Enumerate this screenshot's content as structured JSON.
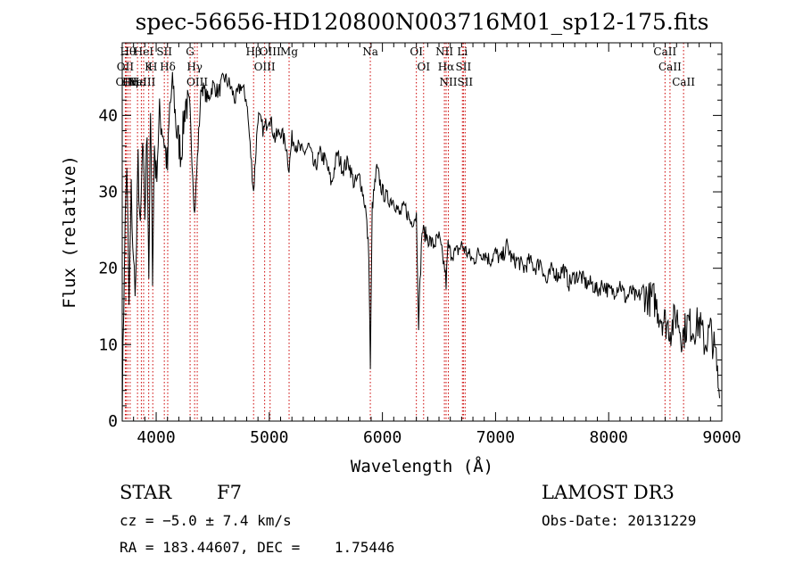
{
  "chart_data": {
    "type": "line",
    "title": "spec-56656-HD120800N003716M01_sp12-175.fits",
    "xlabel": "Wavelength (Å)",
    "ylabel": "Flux (relative)",
    "xlim": [
      3700,
      9000
    ],
    "ylim": [
      0,
      49.5
    ],
    "xticks": [
      4000,
      5000,
      6000,
      7000,
      8000,
      9000
    ],
    "yticks": [
      0,
      10,
      20,
      30,
      40
    ],
    "xtick_labels": [
      "4000",
      "5000",
      "6000",
      "7000",
      "8000",
      "9000"
    ],
    "ytick_labels": [
      "0",
      "10",
      "20",
      "30",
      "40"
    ],
    "line_color": "#000000",
    "marker_color": "#cc0000",
    "grid": false,
    "series": [
      {
        "x": [
          3700,
          3720,
          3740,
          3760,
          3780,
          3800,
          3820,
          3840,
          3860,
          3880,
          3900,
          3920,
          3935,
          3950,
          3968,
          3985,
          4000,
          4030,
          4060,
          4101,
          4120,
          4150,
          4180,
          4220,
          4260,
          4300,
          4340,
          4370,
          4400,
          4430,
          4460,
          4500,
          4550,
          4600,
          4650,
          4700,
          4750,
          4800,
          4861,
          4900,
          4950,
          5000,
          5050,
          5100,
          5150,
          5175,
          5200,
          5250,
          5300,
          5350,
          5400,
          5450,
          5500,
          5550,
          5600,
          5650,
          5700,
          5750,
          5800,
          5850,
          5880,
          5893,
          5910,
          5950,
          6000,
          6050,
          6100,
          6150,
          6200,
          6250,
          6300,
          6320,
          6350,
          6400,
          6450,
          6500,
          6550,
          6563,
          6580,
          6600,
          6650,
          6700,
          6750,
          6800,
          6850,
          6900,
          6950,
          7000,
          7050,
          7100,
          7150,
          7200,
          7250,
          7300,
          7350,
          7400,
          7450,
          7500,
          7550,
          7600,
          7650,
          7700,
          7750,
          7800,
          7850,
          7900,
          7950,
          8000,
          8050,
          8100,
          8150,
          8200,
          8250,
          8300,
          8350,
          8400,
          8450,
          8500,
          8550,
          8600,
          8650,
          8700,
          8750,
          8800,
          8850,
          8900,
          8950,
          8980
        ],
        "y": [
          1,
          22,
          34,
          15,
          30,
          20,
          18,
          34,
          24,
          36,
          27,
          38,
          19,
          40,
          20,
          36,
          32,
          40,
          38,
          33,
          41,
          44,
          38,
          35,
          42,
          40,
          27,
          36,
          44,
          43,
          42,
          44,
          43,
          45,
          44,
          42,
          44,
          42,
          30,
          40,
          38,
          40,
          37,
          38,
          36,
          33,
          37,
          36,
          35,
          36,
          33,
          35,
          34,
          31,
          35,
          33,
          34,
          31,
          32,
          28,
          22,
          7,
          28,
          33,
          30,
          29,
          29,
          27,
          28,
          26,
          27,
          13,
          25,
          24,
          23,
          24,
          20,
          18,
          23,
          22,
          22,
          23,
          22,
          21,
          22,
          22,
          21,
          22,
          21,
          23,
          21,
          21,
          20,
          21,
          20,
          21,
          18,
          20,
          19,
          20,
          18,
          19,
          19,
          18,
          18,
          17,
          18,
          17,
          17,
          18,
          16,
          17,
          16,
          17,
          16,
          16,
          14,
          13,
          12,
          14,
          11,
          13,
          12,
          13,
          10,
          12,
          8,
          3
        ]
      }
    ],
    "line_markers": [
      {
        "wavelength": 3750,
        "label": "Hθ"
      },
      {
        "wavelength": 3727,
        "label": "OII"
      },
      {
        "wavelength": 3736,
        "label": "OIII"
      },
      {
        "wavelength": 3770,
        "label": "Hη"
      },
      {
        "wavelength": 3835,
        "label": "Hε"
      },
      {
        "wavelength": 3869,
        "label": "NeIII"
      },
      {
        "wavelength": 3889,
        "label": "HeI"
      },
      {
        "wavelength": 3934,
        "label": "K"
      },
      {
        "wavelength": 3970,
        "label": "H"
      },
      {
        "wavelength": 4072,
        "label": "SII"
      },
      {
        "wavelength": 4102,
        "label": "Hδ"
      },
      {
        "wavelength": 4300,
        "label": "G"
      },
      {
        "wavelength": 4340,
        "label": "Hγ"
      },
      {
        "wavelength": 4363,
        "label": "OIII"
      },
      {
        "wavelength": 4861,
        "label": "Hβ"
      },
      {
        "wavelength": 4959,
        "label": "OIII"
      },
      {
        "wavelength": 5007,
        "label": "OIII"
      },
      {
        "wavelength": 5175,
        "label": "Mg"
      },
      {
        "wavelength": 5893,
        "label": "Na"
      },
      {
        "wavelength": 6300,
        "label": "OI"
      },
      {
        "wavelength": 6364,
        "label": "OI"
      },
      {
        "wavelength": 6548,
        "label": "NII"
      },
      {
        "wavelength": 6563,
        "label": "Hα"
      },
      {
        "wavelength": 6583,
        "label": "NII"
      },
      {
        "wavelength": 6707,
        "label": "Li"
      },
      {
        "wavelength": 6716,
        "label": "SII"
      },
      {
        "wavelength": 6731,
        "label": "SII"
      },
      {
        "wavelength": 8498,
        "label": "CaII"
      },
      {
        "wavelength": 8542,
        "label": "CaII"
      },
      {
        "wavelength": 8662,
        "label": "CaII"
      }
    ]
  },
  "info": {
    "class_label": "STAR",
    "subclass": "F7",
    "cz_text": "cz = −5.0 ± 7.4 km/s",
    "radec_text": "RA = 183.44607, DEC =    1.75446",
    "survey": "LAMOST DR3",
    "obs_date_text": "Obs-Date: 20131229"
  }
}
